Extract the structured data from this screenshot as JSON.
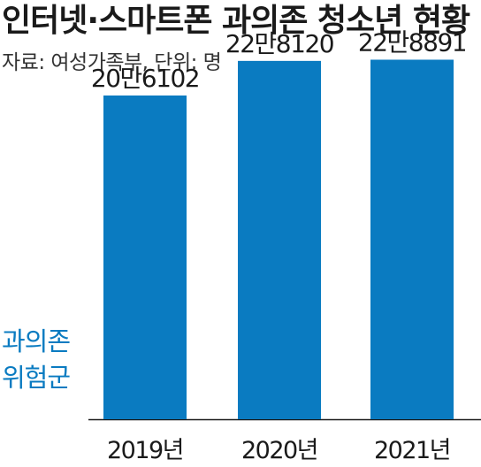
{
  "title": "인터넷·스마트폰 과의존 청소년 현황",
  "source_note": "자료: 여성가족부, 단위: 명",
  "category_note_lines": [
    "과의존",
    "위험군"
  ],
  "colors": {
    "bar": "#0a7bc1",
    "note": "#0a7bc1",
    "text": "#1a1a1a",
    "axis": "#1a1a1a"
  },
  "chart_data": {
    "type": "bar",
    "title": "인터넷·스마트폰 과의존 청소년 현황",
    "subtitle": "자료: 여성가족부, 단위: 명",
    "xlabel": "",
    "ylabel": "",
    "categories": [
      "2019년",
      "2020년",
      "2021년"
    ],
    "series": [
      {
        "name": "과의존 위험군",
        "values": [
          206102,
          228120,
          228891
        ],
        "data_labels": [
          "20만6102",
          "22만8120",
          "22만8891"
        ]
      }
    ],
    "ylim": [
      0,
      250000
    ],
    "grid": false,
    "legend": "none"
  }
}
